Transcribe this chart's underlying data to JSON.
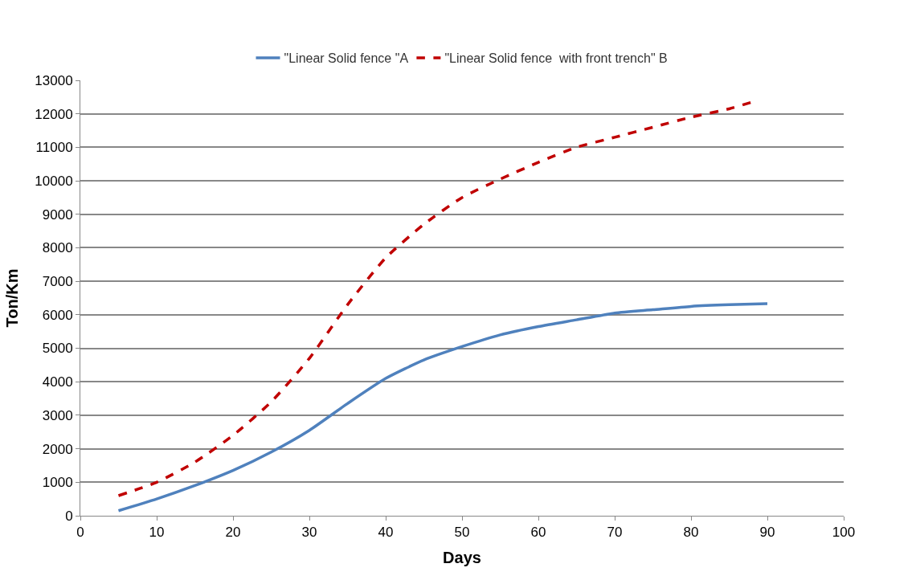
{
  "chart_data": {
    "type": "line",
    "xlabel": "Days",
    "ylabel": "Ton/Km",
    "xlim": [
      0,
      100
    ],
    "xticks": [
      0,
      10,
      20,
      30,
      40,
      50,
      60,
      70,
      80,
      90,
      100
    ],
    "ylim": [
      0,
      13000
    ],
    "yticks": [
      0,
      1000,
      2000,
      3000,
      4000,
      5000,
      6000,
      7000,
      8000,
      9000,
      10000,
      11000,
      12000,
      13000
    ],
    "grid": "y",
    "legend": "top",
    "marker": "none",
    "series": [
      {
        "name": "\"Linear Solid fence \"A",
        "color": "#4f81bd",
        "line_style": "solid",
        "x": [
          5,
          10,
          15,
          20,
          25,
          30,
          35,
          40,
          45,
          50,
          55,
          60,
          65,
          70,
          75,
          80,
          85,
          90
        ],
        "values": [
          150,
          500,
          900,
          1350,
          1900,
          2550,
          3350,
          4100,
          4650,
          5050,
          5400,
          5650,
          5850,
          6050,
          6150,
          6250,
          6300,
          6330
        ]
      },
      {
        "name": "\"Linear Solid fence  with front trench\" B",
        "color": "#c00000",
        "line_style": "dashed",
        "x": [
          5,
          10,
          15,
          20,
          25,
          30,
          35,
          40,
          45,
          50,
          55,
          60,
          65,
          70,
          75,
          80,
          85,
          88
        ],
        "values": [
          600,
          1000,
          1600,
          2400,
          3400,
          4700,
          6300,
          7700,
          8700,
          9500,
          10050,
          10550,
          11000,
          11300,
          11600,
          11900,
          12150,
          12350
        ]
      }
    ]
  }
}
